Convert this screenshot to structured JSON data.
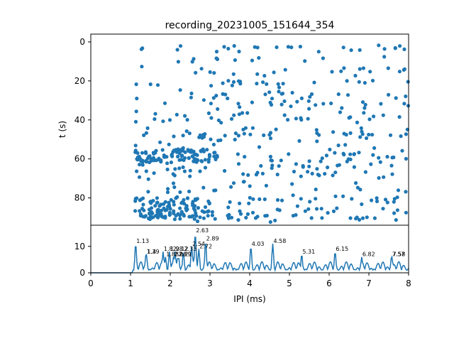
{
  "chart_data": [
    {
      "type": "scatter",
      "title": "recording_20231005_151644_354",
      "xlabel": "",
      "ylabel": "t (s)",
      "xlim": [
        0,
        8
      ],
      "ylim": [
        94,
        -4
      ],
      "y_inverted": true,
      "yticks": [
        0,
        20,
        40,
        60,
        80
      ],
      "color": "#1f77b4",
      "x_shared_with_lower_panel": true,
      "band_times": [
        3,
        4,
        9,
        14,
        16,
        21,
        22,
        26,
        28,
        31,
        33,
        37,
        39,
        40,
        45,
        47,
        48,
        50,
        54,
        57,
        58,
        60,
        62,
        64,
        65,
        67,
        69,
        73,
        76,
        80,
        81,
        82,
        85,
        87,
        89,
        90,
        91
      ],
      "dense_clusters": [
        {
          "x_range": [
            1.1,
            3.2
          ],
          "t_range": [
            55,
            62
          ]
        },
        {
          "x_range": [
            1.1,
            3.0
          ],
          "t_range": [
            80,
            91
          ]
        }
      ]
    },
    {
      "type": "line",
      "title": "",
      "xlabel": "IPI (ms)",
      "ylabel": "",
      "xlim": [
        0,
        8
      ],
      "ylim": [
        0,
        18
      ],
      "xticks": [
        0,
        1,
        2,
        3,
        4,
        5,
        6,
        7,
        8
      ],
      "yticks": [
        0,
        10
      ],
      "color": "#1f77b4",
      "peaks": [
        {
          "x": 1.13,
          "y": 11,
          "label": "1.13"
        },
        {
          "x": 1.39,
          "y": 7,
          "label": "1.39"
        },
        {
          "x": 1.4,
          "y": 7,
          "label": "1.4"
        },
        {
          "x": 1.82,
          "y": 8,
          "label": "1.82"
        },
        {
          "x": 1.88,
          "y": 6,
          "label": "1.88"
        },
        {
          "x": 1.98,
          "y": 8,
          "label": "1.98"
        },
        {
          "x": 2.08,
          "y": 6,
          "label": "2.08"
        },
        {
          "x": 2.12,
          "y": 8,
          "label": "2.12"
        },
        {
          "x": 2.19,
          "y": 6,
          "label": "2.19"
        },
        {
          "x": 2.21,
          "y": 6,
          "label": "2.21"
        },
        {
          "x": 2.33,
          "y": 8,
          "label": "2.33"
        },
        {
          "x": 2.54,
          "y": 10,
          "label": "2.54"
        },
        {
          "x": 2.63,
          "y": 15,
          "label": "2.63"
        },
        {
          "x": 2.72,
          "y": 9,
          "label": "2.72"
        },
        {
          "x": 2.89,
          "y": 12,
          "label": "2.89"
        },
        {
          "x": 4.03,
          "y": 10,
          "label": "4.03"
        },
        {
          "x": 4.58,
          "y": 11,
          "label": "4.58"
        },
        {
          "x": 5.31,
          "y": 7,
          "label": "5.31"
        },
        {
          "x": 6.15,
          "y": 8,
          "label": "6.15"
        },
        {
          "x": 6.82,
          "y": 6,
          "label": "6.82"
        },
        {
          "x": 7.57,
          "y": 6,
          "label": "7.57"
        },
        {
          "x": 7.58,
          "y": 6,
          "label": "7.58"
        }
      ]
    }
  ]
}
